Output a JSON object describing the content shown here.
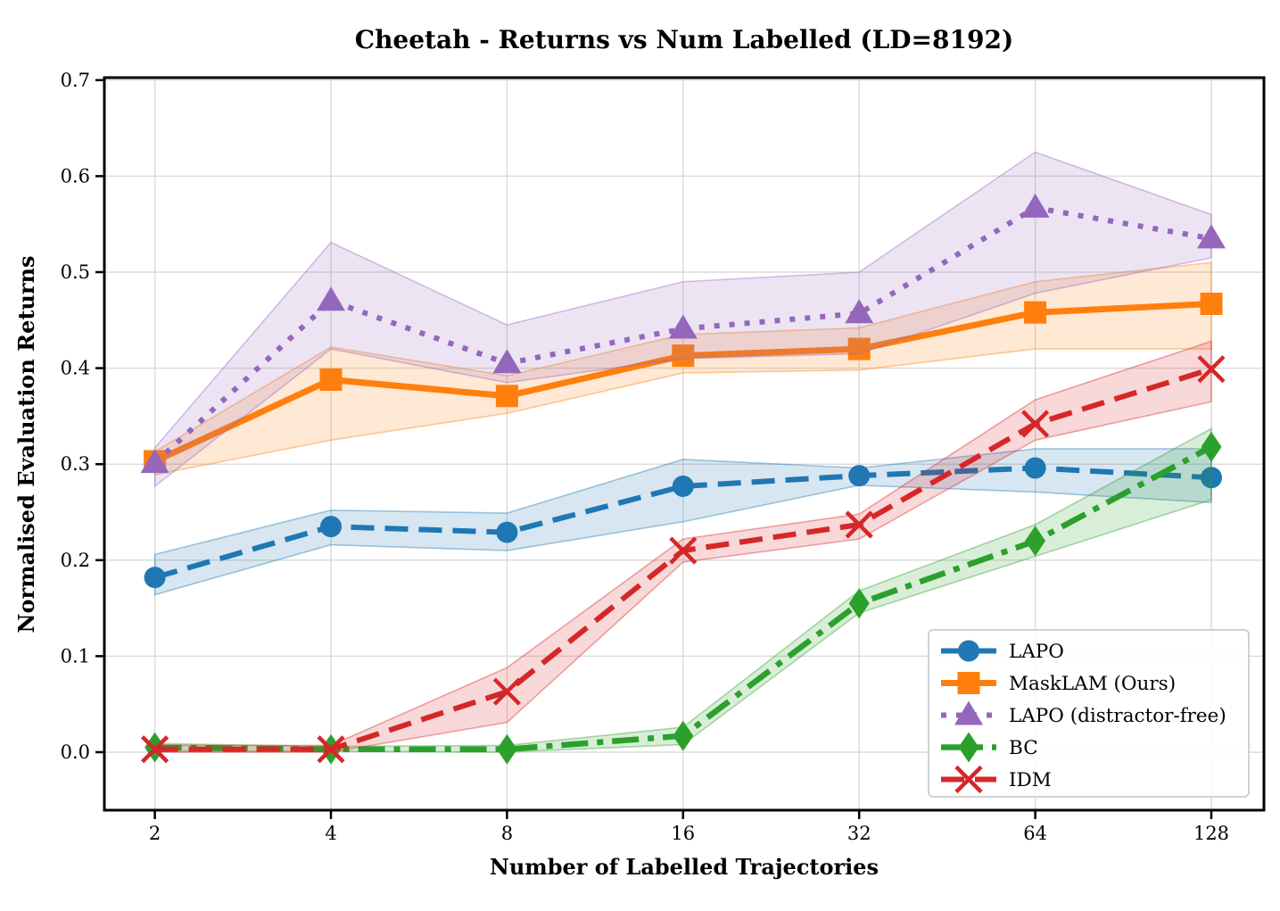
{
  "chart_data": {
    "type": "line",
    "title": "Cheetah - Returns vs Num Labelled (LD=8192)",
    "xlabel": "Number of Labelled Trajectories",
    "ylabel": "Normalised Evaluation Returns",
    "x_scale": "log2",
    "x": [
      2,
      4,
      8,
      16,
      32,
      64,
      128
    ],
    "xtick_labels": [
      "2",
      "4",
      "8",
      "16",
      "32",
      "64",
      "128"
    ],
    "yticks": [
      0.0,
      0.1,
      0.2,
      0.3,
      0.4,
      0.5,
      0.6,
      0.7
    ],
    "ytick_labels": [
      "0.0",
      "0.1",
      "0.2",
      "0.3",
      "0.4",
      "0.5",
      "0.6",
      "0.7"
    ],
    "ylim": [
      -0.06,
      0.703
    ],
    "grid": true,
    "grid_color": "#dcdcdc",
    "legend_position": "lower right",
    "series": [
      {
        "name": "LAPO",
        "color": "#1f77b4",
        "line_style": "dashed",
        "marker": "circle",
        "values": [
          0.182,
          0.235,
          0.229,
          0.277,
          0.288,
          0.296,
          0.286
        ],
        "band_low": [
          0.164,
          0.216,
          0.21,
          0.24,
          0.278,
          0.271,
          0.26
        ],
        "band_high": [
          0.206,
          0.252,
          0.249,
          0.305,
          0.296,
          0.316,
          0.316
        ]
      },
      {
        "name": "MaskLAM (Ours)",
        "color": "#ff7f0e",
        "line_style": "solid",
        "marker": "square",
        "values": [
          0.303,
          0.388,
          0.371,
          0.413,
          0.42,
          0.458,
          0.467
        ],
        "band_low": [
          0.289,
          0.325,
          0.353,
          0.395,
          0.398,
          0.42,
          0.42
        ],
        "band_high": [
          0.313,
          0.422,
          0.392,
          0.435,
          0.442,
          0.49,
          0.51
        ]
      },
      {
        "name": "LAPO (distractor-free)",
        "color": "#9467bd",
        "line_style": "dotted",
        "marker": "triangle",
        "values": [
          0.301,
          0.47,
          0.405,
          0.441,
          0.457,
          0.567,
          0.535
        ],
        "band_low": [
          0.277,
          0.42,
          0.385,
          0.41,
          0.415,
          0.478,
          0.515
        ],
        "band_high": [
          0.317,
          0.531,
          0.445,
          0.49,
          0.5,
          0.625,
          0.56
        ]
      },
      {
        "name": "BC",
        "color": "#2ca02c",
        "line_style": "dashdot",
        "marker": "diamond",
        "values": [
          0.005,
          0.003,
          0.003,
          0.017,
          0.155,
          0.22,
          0.318
        ],
        "band_low": [
          0.001,
          0.001,
          0.0,
          0.008,
          0.145,
          0.204,
          0.263
        ],
        "band_high": [
          0.009,
          0.006,
          0.007,
          0.026,
          0.168,
          0.237,
          0.337
        ]
      },
      {
        "name": "IDM",
        "color": "#d62728",
        "line_style": "dashed",
        "marker": "x",
        "values": [
          0.003,
          0.003,
          0.063,
          0.21,
          0.237,
          0.342,
          0.399
        ],
        "band_low": [
          0.0,
          0.0,
          0.031,
          0.198,
          0.222,
          0.325,
          0.365
        ],
        "band_high": [
          0.007,
          0.007,
          0.088,
          0.222,
          0.248,
          0.367,
          0.428
        ]
      }
    ]
  }
}
